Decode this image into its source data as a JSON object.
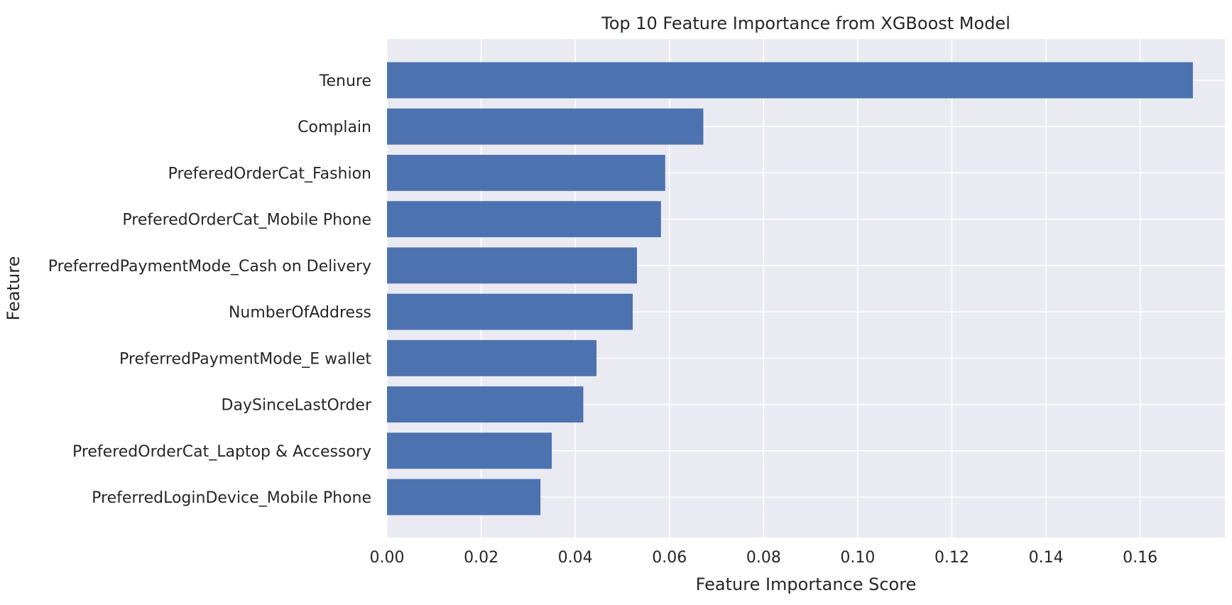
{
  "chart_data": {
    "type": "bar",
    "orientation": "horizontal",
    "title": "Top 10 Feature Importance from XGBoost Model",
    "xlabel": "Feature Importance Score",
    "ylabel": "Feature",
    "xlim": [
      0,
      0.178
    ],
    "x_ticks": [
      "0.00",
      "0.02",
      "0.04",
      "0.06",
      "0.08",
      "0.10",
      "0.12",
      "0.14",
      "0.16"
    ],
    "grid": true,
    "categories": [
      "Tenure",
      "Complain",
      "PreferedOrderCat_Fashion",
      "PreferedOrderCat_Mobile Phone",
      "PreferredPaymentMode_Cash on Delivery",
      "NumberOfAddress",
      "PreferredPaymentMode_E wallet",
      "DaySinceLastOrder",
      "PreferedOrderCat_Laptop & Accessory",
      "PreferredLoginDevice_Mobile Phone"
    ],
    "values": [
      0.1712,
      0.0672,
      0.0591,
      0.0582,
      0.0531,
      0.0522,
      0.0445,
      0.0417,
      0.035,
      0.0326
    ],
    "bar_color": "#4c72b0",
    "background_color": "#eaeaf2",
    "grid_color": "#ffffff"
  }
}
